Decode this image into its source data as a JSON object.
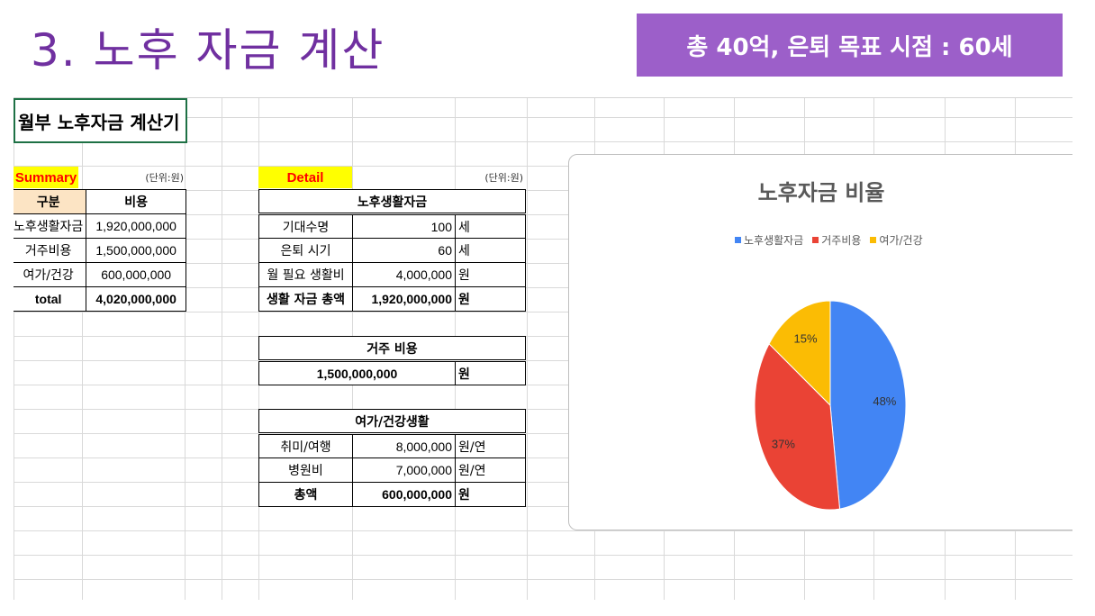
{
  "slide": {
    "title": "3. 노후 자금 계산",
    "banner": "총 40억, 은퇴 목표 시점 : 60세"
  },
  "sheet": {
    "calc_title": "월부 노후자금 계산기"
  },
  "summary": {
    "label": "Summary",
    "unit": "(단위:원)",
    "header": {
      "category": "구분",
      "cost": "비용"
    },
    "rows": [
      {
        "category": "노후생활자금",
        "cost": "1,920,000,000"
      },
      {
        "category": "거주비용",
        "cost": "1,500,000,000"
      },
      {
        "category": "여가/건강",
        "cost": "600,000,000"
      }
    ],
    "total": {
      "category": "total",
      "cost": "4,020,000,000"
    }
  },
  "detail": {
    "label": "Detail",
    "unit": "(단위:원)",
    "living": {
      "title": "노후생활자금",
      "rows": [
        {
          "label": "기대수명",
          "value": "100",
          "unit": "세"
        },
        {
          "label": "은퇴 시기",
          "value": "60",
          "unit": "세"
        },
        {
          "label": "월 필요 생활비",
          "value": "4,000,000",
          "unit": "원"
        }
      ],
      "total": {
        "label": "생활 자금 총액",
        "value": "1,920,000,000",
        "unit": "원"
      }
    },
    "housing": {
      "title": "거주 비용",
      "value": "1,500,000,000",
      "unit": "원"
    },
    "leisure": {
      "title": "여가/건강생활",
      "rows": [
        {
          "label": "취미/여행",
          "value": "8,000,000",
          "unit": "원/연"
        },
        {
          "label": "병원비",
          "value": "7,000,000",
          "unit": "원/연"
        }
      ],
      "total": {
        "label": "총액",
        "value": "600,000,000",
        "unit": "원"
      }
    }
  },
  "chart_data": {
    "type": "pie",
    "title": "노후자금 비율",
    "categories": [
      "노후생활자금",
      "거주비용",
      "여가/건강"
    ],
    "values": [
      48,
      37,
      15
    ],
    "labels": [
      "48%",
      "37%",
      "15%"
    ],
    "colors": [
      "#4285f4",
      "#ea4335",
      "#fbbc04"
    ],
    "legend_position": "top"
  }
}
